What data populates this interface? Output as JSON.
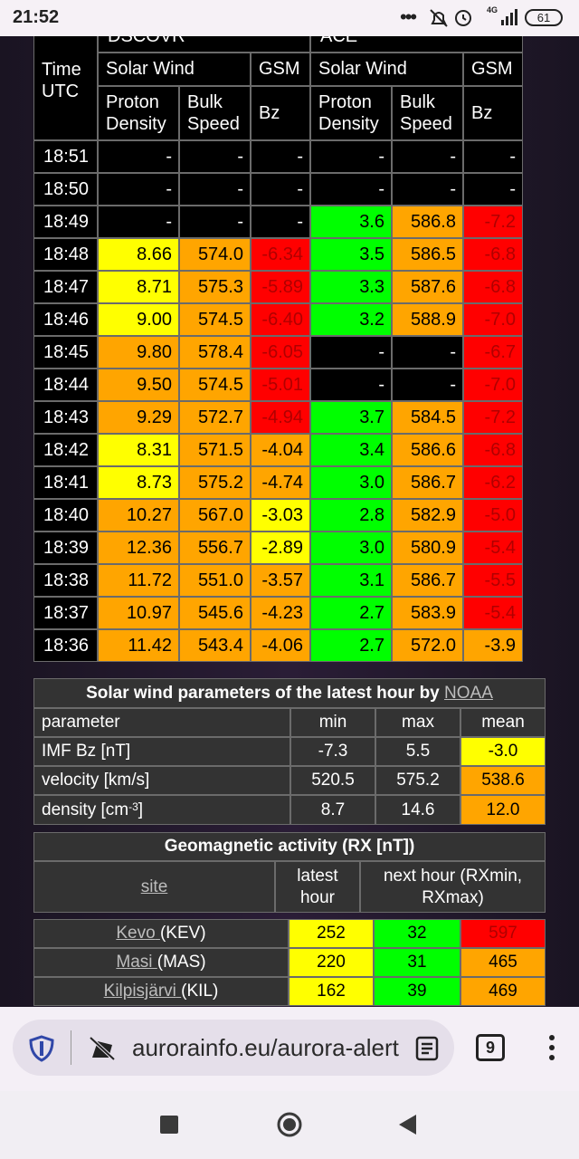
{
  "status_bar": {
    "time": "21:52",
    "network": "4G",
    "battery": "61"
  },
  "main_table": {
    "time_header": "Time UTC",
    "groups": [
      "DSCOVR",
      "ACE"
    ],
    "subgroups": [
      "Solar Wind",
      "GSM",
      "Solar Wind",
      "GSM"
    ],
    "columns": [
      "Proton Density",
      "Bulk Speed",
      "Bz",
      "Proton Density",
      "Bulk Speed",
      "Bz"
    ],
    "rows": [
      [
        "18:51",
        "-",
        "-",
        "-",
        "-",
        "-",
        "-"
      ],
      [
        "18:50",
        "-",
        "-",
        "-",
        "-",
        "-",
        "-"
      ],
      [
        "18:49",
        "-",
        "-",
        "-",
        "3.6",
        "586.8",
        "-7.2"
      ],
      [
        "18:48",
        "8.66",
        "574.0",
        "-6.34",
        "3.5",
        "586.5",
        "-6.8"
      ],
      [
        "18:47",
        "8.71",
        "575.3",
        "-5.89",
        "3.3",
        "587.6",
        "-6.8"
      ],
      [
        "18:46",
        "9.00",
        "574.5",
        "-6.40",
        "3.2",
        "588.9",
        "-7.0"
      ],
      [
        "18:45",
        "9.80",
        "578.4",
        "-6.05",
        "-",
        "-",
        "-6.7"
      ],
      [
        "18:44",
        "9.50",
        "574.5",
        "-5.01",
        "-",
        "-",
        "-7.0"
      ],
      [
        "18:43",
        "9.29",
        "572.7",
        "-4.94",
        "3.7",
        "584.5",
        "-7.2"
      ],
      [
        "18:42",
        "8.31",
        "571.5",
        "-4.04",
        "3.4",
        "586.6",
        "-6.8"
      ],
      [
        "18:41",
        "8.73",
        "575.2",
        "-4.74",
        "3.0",
        "586.7",
        "-6.2"
      ],
      [
        "18:40",
        "10.27",
        "567.0",
        "-3.03",
        "2.8",
        "582.9",
        "-5.0"
      ],
      [
        "18:39",
        "12.36",
        "556.7",
        "-2.89",
        "3.0",
        "580.9",
        "-5.4"
      ],
      [
        "18:38",
        "11.72",
        "551.0",
        "-3.57",
        "3.1",
        "586.7",
        "-5.5"
      ],
      [
        "18:37",
        "10.97",
        "545.6",
        "-4.23",
        "2.7",
        "583.9",
        "-5.4"
      ],
      [
        "18:36",
        "11.42",
        "543.4",
        "-4.06",
        "2.7",
        "572.0",
        "-3.9"
      ]
    ],
    "cell_colors": [
      [
        "#000000",
        "#000000",
        "#000000",
        "#000000",
        "#000000",
        "#000000"
      ],
      [
        "#000000",
        "#000000",
        "#000000",
        "#000000",
        "#000000",
        "#000000"
      ],
      [
        "#000000",
        "#000000",
        "#000000",
        "#00ff00",
        "#ffa500",
        "#ff0000"
      ],
      [
        "#ffff00",
        "#ffa500",
        "#ff0000",
        "#00ff00",
        "#ffa500",
        "#ff0000"
      ],
      [
        "#ffff00",
        "#ffa500",
        "#ff0000",
        "#00ff00",
        "#ffa500",
        "#ff0000"
      ],
      [
        "#ffff00",
        "#ffa500",
        "#ff0000",
        "#00ff00",
        "#ffa500",
        "#ff0000"
      ],
      [
        "#ffa500",
        "#ffa500",
        "#ff0000",
        "#000000",
        "#000000",
        "#ff0000"
      ],
      [
        "#ffa500",
        "#ffa500",
        "#ff0000",
        "#000000",
        "#000000",
        "#ff0000"
      ],
      [
        "#ffa500",
        "#ffa500",
        "#ff0000",
        "#00ff00",
        "#ffa500",
        "#ff0000"
      ],
      [
        "#ffff00",
        "#ffa500",
        "#ffa500",
        "#00ff00",
        "#ffa500",
        "#ff0000"
      ],
      [
        "#ffff00",
        "#ffa500",
        "#ffa500",
        "#00ff00",
        "#ffa500",
        "#ff0000"
      ],
      [
        "#ffa500",
        "#ffa500",
        "#ffff00",
        "#00ff00",
        "#ffa500",
        "#ff0000"
      ],
      [
        "#ffa500",
        "#ffa500",
        "#ffff00",
        "#00ff00",
        "#ffa500",
        "#ff0000"
      ],
      [
        "#ffa500",
        "#ffa500",
        "#ffa500",
        "#00ff00",
        "#ffa500",
        "#ff0000"
      ],
      [
        "#ffa500",
        "#ffa500",
        "#ffa500",
        "#00ff00",
        "#ffa500",
        "#ff0000"
      ],
      [
        "#ffa500",
        "#ffa500",
        "#ffa500",
        "#00ff00",
        "#ffa500",
        "#ffa500"
      ]
    ]
  },
  "noaa_table": {
    "title": "Solar wind parameters of the latest hour by ",
    "title_link": "NOAA",
    "headers": [
      "parameter",
      "min",
      "max",
      "mean"
    ],
    "rows": [
      {
        "label": "IMF Bz [nT]",
        "values": [
          "-7.3",
          "5.5",
          "-3.0"
        ]
      },
      {
        "label": "velocity [km/s]",
        "values": [
          "520.5",
          "575.2",
          "538.6"
        ]
      },
      {
        "label": "density [cm",
        "sup": "-3",
        "suffix": "]",
        "values": [
          "8.7",
          "14.6",
          "12.0"
        ]
      }
    ],
    "mean_colors": [
      "#ffff00",
      "#ffa500",
      "#ffa500"
    ]
  },
  "geo_table": {
    "title": "Geomagnetic activity (RX [nT])",
    "headers": [
      "site",
      "latest hour",
      "next hour (RXmin, RXmax)"
    ],
    "rows": [
      {
        "name": "Kevo",
        "code": "(KEV)",
        "values": [
          "252",
          "32",
          "597"
        ],
        "colors": [
          "#ffff00",
          "#00ff00",
          "#ff0000"
        ]
      },
      {
        "name": "Masi",
        "code": "(MAS)",
        "values": [
          "220",
          "31",
          "465"
        ],
        "colors": [
          "#ffff00",
          "#00ff00",
          "#ffa500"
        ]
      },
      {
        "name": "Kilpisjärvi",
        "code": "(KIL)",
        "values": [
          "162",
          "39",
          "469"
        ],
        "colors": [
          "#ffff00",
          "#00ff00",
          "#ffa500"
        ]
      }
    ]
  },
  "browser": {
    "url": "aurorainfo.eu/aurora-alert",
    "tab_count": "9"
  }
}
